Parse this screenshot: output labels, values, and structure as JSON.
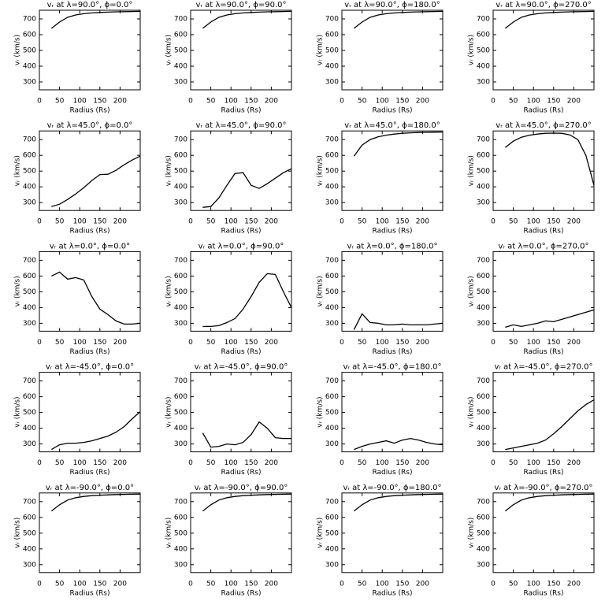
{
  "chart_data": [
    {
      "type": "line",
      "title": "vᵣ at λ=90.0°, ϕ=0.0°",
      "xlabel": "Radius (Rs)",
      "ylabel": "vᵣ (km/s)",
      "color": "#000000",
      "xlim": [
        0,
        250
      ],
      "ylim": [
        250,
        755
      ],
      "xticks": [
        0,
        50,
        100,
        150,
        200
      ],
      "yticks": [
        300,
        400,
        500,
        600,
        700
      ],
      "x": [
        30,
        50,
        70,
        90,
        110,
        130,
        150,
        170,
        190,
        210,
        230,
        250
      ],
      "values": [
        640,
        680,
        710,
        725,
        733,
        738,
        741,
        743,
        745,
        746,
        747,
        748
      ]
    },
    {
      "type": "line",
      "title": "vᵣ at λ=90.0°, ϕ=90.0°",
      "xlabel": "Radius (Rs)",
      "ylabel": "vᵣ (km/s)",
      "color": "#000000",
      "xlim": [
        0,
        250
      ],
      "ylim": [
        250,
        755
      ],
      "xticks": [
        0,
        50,
        100,
        150,
        200
      ],
      "yticks": [
        300,
        400,
        500,
        600,
        700
      ],
      "x": [
        30,
        50,
        70,
        90,
        110,
        130,
        150,
        170,
        190,
        210,
        230,
        250
      ],
      "values": [
        640,
        680,
        710,
        725,
        733,
        738,
        741,
        743,
        745,
        746,
        747,
        748
      ]
    },
    {
      "type": "line",
      "title": "vᵣ at λ=90.0°, ϕ=180.0°",
      "xlabel": "Radius (Rs)",
      "ylabel": "vᵣ (km/s)",
      "color": "#000000",
      "xlim": [
        0,
        250
      ],
      "ylim": [
        250,
        755
      ],
      "xticks": [
        0,
        50,
        100,
        150,
        200
      ],
      "yticks": [
        300,
        400,
        500,
        600,
        700
      ],
      "x": [
        30,
        50,
        70,
        90,
        110,
        130,
        150,
        170,
        190,
        210,
        230,
        250
      ],
      "values": [
        640,
        680,
        710,
        725,
        733,
        738,
        741,
        743,
        745,
        746,
        747,
        748
      ]
    },
    {
      "type": "line",
      "title": "vᵣ at λ=90.0°, ϕ=270.0°",
      "xlabel": "Radius (Rs)",
      "ylabel": "vᵣ (km/s)",
      "color": "#000000",
      "xlim": [
        0,
        250
      ],
      "ylim": [
        250,
        755
      ],
      "xticks": [
        0,
        50,
        100,
        150,
        200
      ],
      "yticks": [
        300,
        400,
        500,
        600,
        700
      ],
      "x": [
        30,
        50,
        70,
        90,
        110,
        130,
        150,
        170,
        190,
        210,
        230,
        250
      ],
      "values": [
        640,
        680,
        710,
        725,
        733,
        738,
        741,
        743,
        745,
        746,
        747,
        748
      ]
    },
    {
      "type": "line",
      "title": "vᵣ at λ=45.0°, ϕ=0.0°",
      "xlabel": "Radius (Rs)",
      "ylabel": "vᵣ (km/s)",
      "color": "#000000",
      "xlim": [
        0,
        250
      ],
      "ylim": [
        250,
        755
      ],
      "xticks": [
        0,
        50,
        100,
        150,
        200
      ],
      "yticks": [
        300,
        400,
        500,
        600,
        700
      ],
      "x": [
        30,
        50,
        70,
        90,
        110,
        130,
        150,
        170,
        190,
        210,
        230,
        250
      ],
      "values": [
        275,
        290,
        320,
        355,
        395,
        440,
        478,
        480,
        505,
        540,
        570,
        595
      ]
    },
    {
      "type": "line",
      "title": "vᵣ at λ=45.0°, ϕ=90.0°",
      "xlabel": "Radius (Rs)",
      "ylabel": "vᵣ (km/s)",
      "color": "#000000",
      "xlim": [
        0,
        250
      ],
      "ylim": [
        250,
        755
      ],
      "xticks": [
        0,
        50,
        100,
        150,
        200
      ],
      "yticks": [
        300,
        400,
        500,
        600,
        700
      ],
      "x": [
        30,
        50,
        70,
        90,
        110,
        130,
        150,
        170,
        190,
        210,
        230,
        250
      ],
      "values": [
        270,
        275,
        330,
        410,
        485,
        490,
        410,
        390,
        420,
        455,
        490,
        515
      ]
    },
    {
      "type": "line",
      "title": "vᵣ at λ=45.0°, ϕ=180.0°",
      "xlabel": "Radius (Rs)",
      "ylabel": "vᵣ (km/s)",
      "color": "#000000",
      "xlim": [
        0,
        250
      ],
      "ylim": [
        250,
        755
      ],
      "xticks": [
        0,
        50,
        100,
        150,
        200
      ],
      "yticks": [
        300,
        400,
        500,
        600,
        700
      ],
      "x": [
        30,
        50,
        70,
        90,
        110,
        130,
        150,
        170,
        190,
        210,
        230,
        250
      ],
      "values": [
        595,
        665,
        700,
        718,
        728,
        735,
        740,
        743,
        745,
        746,
        747,
        748
      ]
    },
    {
      "type": "line",
      "title": "vᵣ at λ=45.0°, ϕ=270.0°",
      "xlabel": "Radius (Rs)",
      "ylabel": "vᵣ (km/s)",
      "color": "#000000",
      "xlim": [
        0,
        250
      ],
      "ylim": [
        250,
        755
      ],
      "xticks": [
        0,
        50,
        100,
        150,
        200
      ],
      "yticks": [
        300,
        400,
        500,
        600,
        700
      ],
      "x": [
        30,
        50,
        70,
        90,
        110,
        130,
        150,
        170,
        190,
        210,
        230,
        250
      ],
      "values": [
        650,
        690,
        715,
        728,
        735,
        740,
        741,
        740,
        730,
        700,
        600,
        410
      ]
    },
    {
      "type": "line",
      "title": "vᵣ at λ=0.0°, ϕ=0.0°",
      "xlabel": "Radius (Rs)",
      "ylabel": "vᵣ (km/s)",
      "color": "#000000",
      "xlim": [
        0,
        250
      ],
      "ylim": [
        250,
        755
      ],
      "xticks": [
        0,
        50,
        100,
        150,
        200
      ],
      "yticks": [
        300,
        400,
        500,
        600,
        700
      ],
      "x": [
        30,
        50,
        70,
        90,
        110,
        130,
        150,
        170,
        190,
        210,
        230,
        250
      ],
      "values": [
        600,
        625,
        580,
        590,
        575,
        470,
        390,
        355,
        315,
        295,
        295,
        300
      ]
    },
    {
      "type": "line",
      "title": "vᵣ at λ=0.0°, ϕ=90.0°",
      "xlabel": "Radius (Rs)",
      "ylabel": "vᵣ (km/s)",
      "color": "#000000",
      "xlim": [
        0,
        250
      ],
      "ylim": [
        250,
        755
      ],
      "xticks": [
        0,
        50,
        100,
        150,
        200
      ],
      "yticks": [
        300,
        400,
        500,
        600,
        700
      ],
      "x": [
        30,
        50,
        70,
        90,
        110,
        130,
        150,
        170,
        190,
        210,
        230,
        250
      ],
      "values": [
        280,
        280,
        285,
        305,
        330,
        390,
        470,
        560,
        615,
        610,
        500,
        400
      ]
    },
    {
      "type": "line",
      "title": "vᵣ at λ=0.0°, ϕ=180.0°",
      "xlabel": "Radius (Rs)",
      "ylabel": "vᵣ (km/s)",
      "color": "#000000",
      "xlim": [
        0,
        250
      ],
      "ylim": [
        250,
        755
      ],
      "xticks": [
        0,
        50,
        100,
        150,
        200
      ],
      "yticks": [
        300,
        400,
        500,
        600,
        700
      ],
      "x": [
        30,
        50,
        70,
        90,
        110,
        130,
        150,
        170,
        190,
        210,
        230,
        250
      ],
      "values": [
        260,
        360,
        305,
        300,
        290,
        290,
        295,
        290,
        290,
        290,
        295,
        300
      ]
    },
    {
      "type": "line",
      "title": "vᵣ at λ=0.0°, ϕ=270.0°",
      "xlabel": "Radius (Rs)",
      "ylabel": "vᵣ (km/s)",
      "color": "#000000",
      "xlim": [
        0,
        250
      ],
      "ylim": [
        250,
        755
      ],
      "xticks": [
        0,
        50,
        100,
        150,
        200
      ],
      "yticks": [
        300,
        400,
        500,
        600,
        700
      ],
      "x": [
        30,
        50,
        70,
        90,
        110,
        130,
        150,
        170,
        190,
        210,
        230,
        250
      ],
      "values": [
        275,
        290,
        280,
        290,
        300,
        315,
        310,
        325,
        340,
        355,
        370,
        385
      ]
    },
    {
      "type": "line",
      "title": "vᵣ at λ=-45.0°, ϕ=0.0°",
      "xlabel": "Radius (Rs)",
      "ylabel": "vᵣ (km/s)",
      "color": "#000000",
      "xlim": [
        0,
        250
      ],
      "ylim": [
        250,
        755
      ],
      "xticks": [
        0,
        50,
        100,
        150,
        200
      ],
      "yticks": [
        300,
        400,
        500,
        600,
        700
      ],
      "x": [
        30,
        50,
        70,
        90,
        110,
        130,
        150,
        170,
        190,
        210,
        230,
        250
      ],
      "values": [
        265,
        295,
        305,
        305,
        310,
        320,
        335,
        350,
        375,
        410,
        460,
        505
      ]
    },
    {
      "type": "line",
      "title": "vᵣ at λ=-45.0°, ϕ=90.0°",
      "xlabel": "Radius (Rs)",
      "ylabel": "vᵣ (km/s)",
      "color": "#000000",
      "xlim": [
        0,
        250
      ],
      "ylim": [
        250,
        755
      ],
      "xticks": [
        0,
        50,
        100,
        150,
        200
      ],
      "yticks": [
        300,
        400,
        500,
        600,
        700
      ],
      "x": [
        30,
        50,
        70,
        90,
        110,
        130,
        150,
        170,
        190,
        210,
        230,
        250
      ],
      "values": [
        370,
        280,
        285,
        300,
        295,
        310,
        360,
        440,
        400,
        340,
        335,
        335
      ]
    },
    {
      "type": "line",
      "title": "vᵣ at λ=-45.0°, ϕ=180.0°",
      "xlabel": "Radius (Rs)",
      "ylabel": "vᵣ (km/s)",
      "color": "#000000",
      "xlim": [
        0,
        250
      ],
      "ylim": [
        250,
        755
      ],
      "xticks": [
        0,
        50,
        100,
        150,
        200
      ],
      "yticks": [
        300,
        400,
        500,
        600,
        700
      ],
      "x": [
        30,
        50,
        70,
        90,
        110,
        130,
        150,
        170,
        190,
        210,
        230,
        250
      ],
      "values": [
        265,
        285,
        300,
        310,
        320,
        305,
        325,
        335,
        325,
        310,
        300,
        295
      ]
    },
    {
      "type": "line",
      "title": "vᵣ at λ=-45.0°, ϕ=270.0°",
      "xlabel": "Radius (Rs)",
      "ylabel": "vᵣ (km/s)",
      "color": "#000000",
      "xlim": [
        0,
        250
      ],
      "ylim": [
        250,
        755
      ],
      "xticks": [
        0,
        50,
        100,
        150,
        200
      ],
      "yticks": [
        300,
        400,
        500,
        600,
        700
      ],
      "x": [
        30,
        50,
        70,
        90,
        110,
        130,
        150,
        170,
        190,
        210,
        230,
        250
      ],
      "values": [
        265,
        275,
        285,
        295,
        305,
        325,
        365,
        410,
        460,
        510,
        550,
        580
      ]
    },
    {
      "type": "line",
      "title": "vᵣ at λ=-90.0°, ϕ=0.0°",
      "xlabel": "Radius (Rs)",
      "ylabel": "vᵣ (km/s)",
      "color": "#000000",
      "xlim": [
        0,
        250
      ],
      "ylim": [
        250,
        755
      ],
      "xticks": [
        0,
        50,
        100,
        150,
        200
      ],
      "yticks": [
        300,
        400,
        500,
        600,
        700
      ],
      "x": [
        30,
        50,
        70,
        90,
        110,
        130,
        150,
        170,
        190,
        210,
        230,
        250
      ],
      "values": [
        640,
        680,
        710,
        725,
        733,
        738,
        741,
        743,
        745,
        746,
        747,
        748
      ]
    },
    {
      "type": "line",
      "title": "vᵣ at λ=-90.0°, ϕ=90.0°",
      "xlabel": "Radius (Rs)",
      "ylabel": "vᵣ (km/s)",
      "color": "#000000",
      "xlim": [
        0,
        250
      ],
      "ylim": [
        250,
        755
      ],
      "xticks": [
        0,
        50,
        100,
        150,
        200
      ],
      "yticks": [
        300,
        400,
        500,
        600,
        700
      ],
      "x": [
        30,
        50,
        70,
        90,
        110,
        130,
        150,
        170,
        190,
        210,
        230,
        250
      ],
      "values": [
        640,
        680,
        710,
        725,
        733,
        738,
        741,
        743,
        745,
        746,
        747,
        748
      ]
    },
    {
      "type": "line",
      "title": "vᵣ at λ=-90.0°, ϕ=180.0°",
      "xlabel": "Radius (Rs)",
      "ylabel": "vᵣ (km/s)",
      "color": "#000000",
      "xlim": [
        0,
        250
      ],
      "ylim": [
        250,
        755
      ],
      "xticks": [
        0,
        50,
        100,
        150,
        200
      ],
      "yticks": [
        300,
        400,
        500,
        600,
        700
      ],
      "x": [
        30,
        50,
        70,
        90,
        110,
        130,
        150,
        170,
        190,
        210,
        230,
        250
      ],
      "values": [
        640,
        680,
        710,
        725,
        733,
        738,
        741,
        743,
        745,
        746,
        747,
        748
      ]
    },
    {
      "type": "line",
      "title": "vᵣ at λ=-90.0°, ϕ=270.0°",
      "xlabel": "Radius (Rs)",
      "ylabel": "vᵣ (km/s)",
      "color": "#000000",
      "xlim": [
        0,
        250
      ],
      "ylim": [
        250,
        755
      ],
      "xticks": [
        0,
        50,
        100,
        150,
        200
      ],
      "yticks": [
        300,
        400,
        500,
        600,
        700
      ],
      "x": [
        30,
        50,
        70,
        90,
        110,
        130,
        150,
        170,
        190,
        210,
        230,
        250
      ],
      "values": [
        640,
        680,
        710,
        725,
        733,
        738,
        741,
        743,
        745,
        746,
        747,
        748
      ]
    }
  ]
}
